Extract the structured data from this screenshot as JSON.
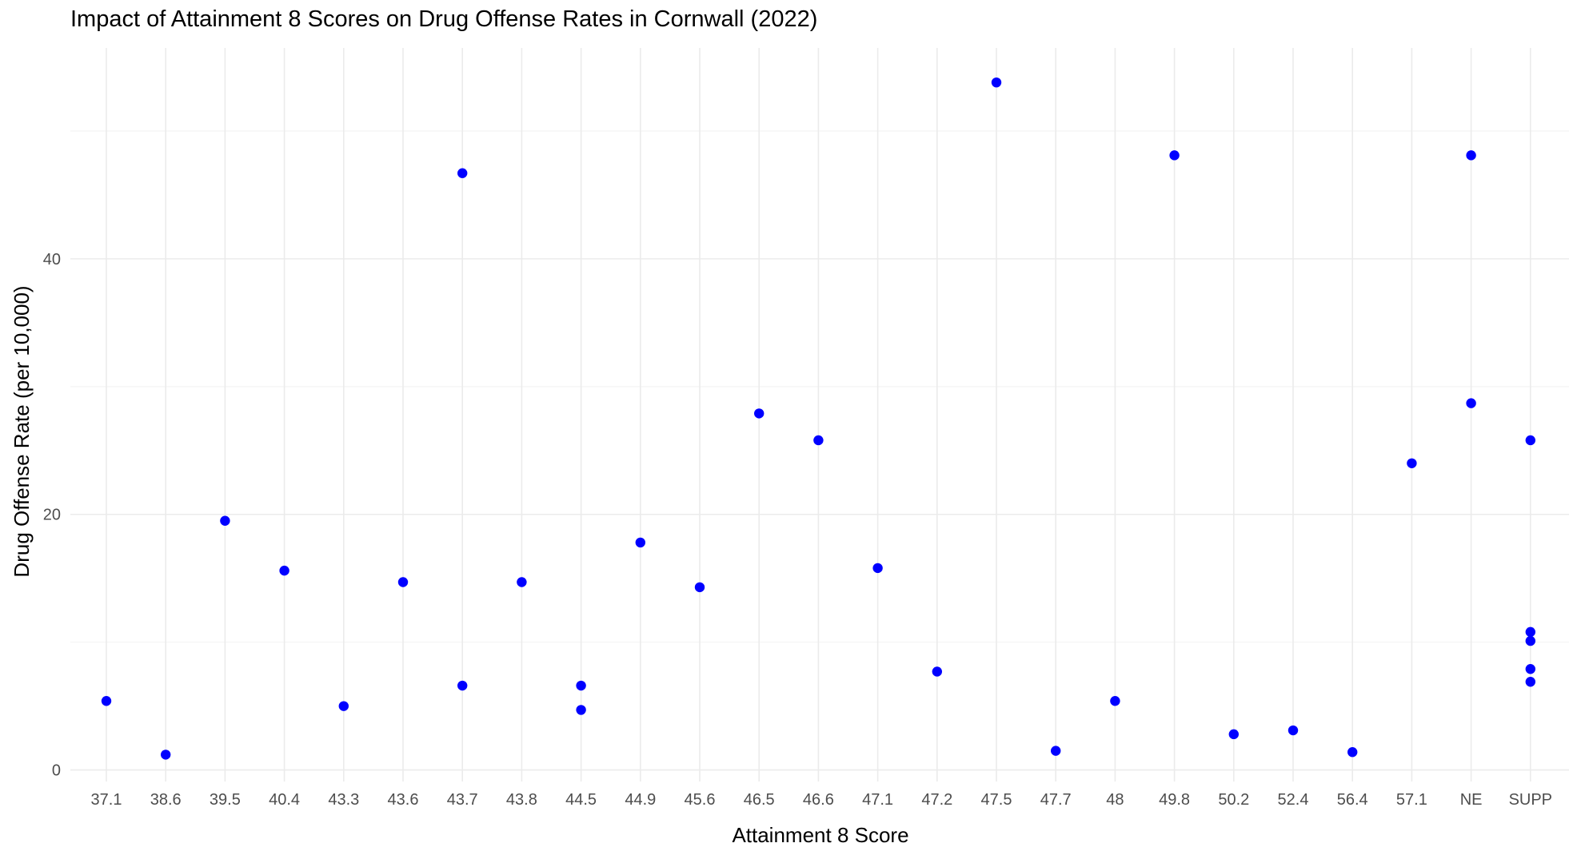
{
  "chart_data": {
    "type": "scatter",
    "title": "Impact of Attainment 8 Scores on Drug Offense Rates in Cornwall (2022)",
    "xlabel": "Attainment 8 Score",
    "ylabel": "Drug Offense Rate (per 10,000)",
    "categories": [
      "37.1",
      "38.6",
      "39.5",
      "40.4",
      "43.3",
      "43.6",
      "43.7",
      "43.8",
      "44.5",
      "44.9",
      "45.6",
      "46.5",
      "46.6",
      "47.1",
      "47.2",
      "47.5",
      "47.7",
      "48",
      "49.8",
      "50.2",
      "52.4",
      "56.4",
      "57.1",
      "NE",
      "SUPP"
    ],
    "y_ticks": [
      0,
      20,
      40
    ],
    "ylim": [
      -0.9,
      56.5
    ],
    "grid": true,
    "point_color": "#0000FF",
    "points": [
      {
        "x": "37.1",
        "y": 5.4
      },
      {
        "x": "38.6",
        "y": 1.2
      },
      {
        "x": "39.5",
        "y": 19.5
      },
      {
        "x": "40.4",
        "y": 15.6
      },
      {
        "x": "43.3",
        "y": 5.0
      },
      {
        "x": "43.6",
        "y": 14.7
      },
      {
        "x": "43.7",
        "y": 46.7
      },
      {
        "x": "43.7",
        "y": 6.6
      },
      {
        "x": "43.8",
        "y": 14.7
      },
      {
        "x": "44.5",
        "y": 6.6
      },
      {
        "x": "44.5",
        "y": 4.7
      },
      {
        "x": "44.9",
        "y": 17.8
      },
      {
        "x": "45.6",
        "y": 14.3
      },
      {
        "x": "46.5",
        "y": 27.9
      },
      {
        "x": "46.6",
        "y": 25.8
      },
      {
        "x": "47.1",
        "y": 15.8
      },
      {
        "x": "47.2",
        "y": 7.7
      },
      {
        "x": "47.5",
        "y": 53.8
      },
      {
        "x": "47.7",
        "y": 1.5
      },
      {
        "x": "48",
        "y": 5.4
      },
      {
        "x": "49.8",
        "y": 48.1
      },
      {
        "x": "50.2",
        "y": 2.8
      },
      {
        "x": "52.4",
        "y": 3.1
      },
      {
        "x": "56.4",
        "y": 1.4
      },
      {
        "x": "57.1",
        "y": 24.0
      },
      {
        "x": "NE",
        "y": 48.1
      },
      {
        "x": "NE",
        "y": 28.7
      },
      {
        "x": "SUPP",
        "y": 25.8
      },
      {
        "x": "SUPP",
        "y": 10.8
      },
      {
        "x": "SUPP",
        "y": 10.1
      },
      {
        "x": "SUPP",
        "y": 7.9
      },
      {
        "x": "SUPP",
        "y": 6.9
      }
    ]
  }
}
